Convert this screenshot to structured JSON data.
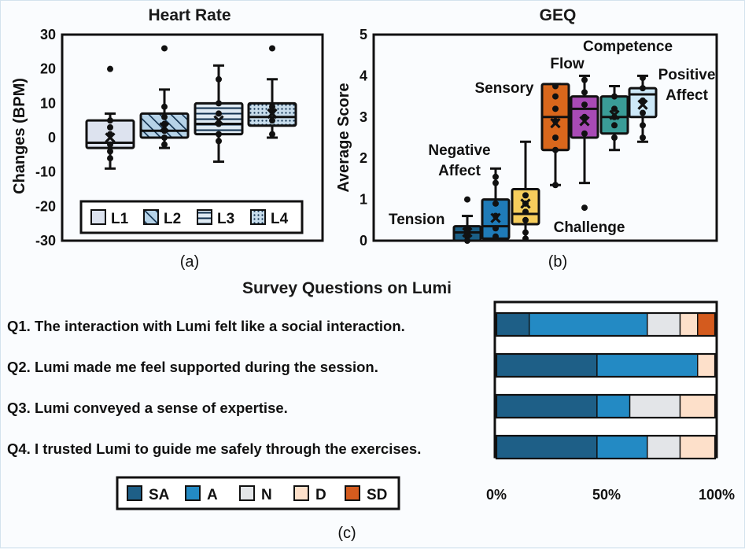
{
  "colors": {
    "L1": "#dde3ef",
    "L2": "#b6d3e8",
    "L3": "#dfeaf3",
    "L4": "#c7dceb",
    "Tension": "#1b5f86",
    "NegativeAffect": "#1f7bb8",
    "Sensory": "#f6cd5c",
    "Flow": "#d9671c",
    "Competence": "#a84ab5",
    "Challenge": "#3a9c97",
    "PositiveAffect": "#cde8f7",
    "SA": "#1e5f87",
    "A": "#238ac4",
    "N": "#e3e5e8",
    "D": "#fde0ca",
    "SD": "#d45b1e"
  },
  "chart_data": [
    {
      "type": "box",
      "panel": "(a)",
      "title": "Heart Rate",
      "ylabel": "Changes (BPM)",
      "ylim": [
        -30,
        30
      ],
      "yticks": [
        "30",
        "20",
        "10",
        "0",
        "-10",
        "-20",
        "-30"
      ],
      "legend_position": "bottom",
      "legend": [
        "L1",
        "L2",
        "L3",
        "L4"
      ],
      "series": [
        {
          "name": "L1",
          "pattern": "solid",
          "whisker_low": -9,
          "q1": -3,
          "median": -1.5,
          "q3": 5,
          "whisker_high": 7,
          "mean": 0,
          "points": [
            20,
            5,
            3,
            1,
            -2,
            -4,
            -6
          ]
        },
        {
          "name": "L2",
          "pattern": "diagonal",
          "whisker_low": -3,
          "q1": 0,
          "median": 2,
          "q3": 7,
          "whisker_high": 14,
          "mean": 3,
          "points": [
            26,
            9,
            6,
            4,
            2,
            0,
            -2
          ]
        },
        {
          "name": "L3",
          "pattern": "horizontal",
          "whisker_low": -7,
          "q1": 1,
          "median": 4,
          "q3": 10,
          "whisker_high": 21,
          "mean": 5,
          "points": [
            17,
            10,
            7,
            4,
            1,
            -1
          ]
        },
        {
          "name": "L4",
          "pattern": "dotted",
          "whisker_low": 0,
          "q1": 3.5,
          "median": 6,
          "q3": 10,
          "whisker_high": 17,
          "mean": 7,
          "points": [
            26,
            9,
            8,
            5,
            1
          ]
        }
      ]
    },
    {
      "type": "box",
      "panel": "(b)",
      "title": "GEQ",
      "ylabel": "Average Score",
      "ylim": [
        0,
        5
      ],
      "yticks": [
        "5",
        "4",
        "3",
        "2",
        "1",
        "0"
      ],
      "series": [
        {
          "name": "Tension",
          "whisker_low": 0,
          "q1": 0,
          "median": 0.2,
          "q3": 0.35,
          "whisker_high": 0.6,
          "mean": 0.2,
          "points": [
            1.0,
            0.3,
            0.1,
            0.0
          ]
        },
        {
          "name": "Negative Affect",
          "whisker_low": 0,
          "q1": 0.05,
          "median": 0.35,
          "q3": 1.0,
          "whisker_high": 1.75,
          "mean": 0.55,
          "points": [
            1.55,
            1.4,
            0.9,
            0.6,
            0.3,
            0.1
          ]
        },
        {
          "name": "Sensory",
          "whisker_low": 0,
          "q1": 0.4,
          "median": 0.65,
          "q3": 1.25,
          "whisker_high": 2.4,
          "mean": 0.9,
          "points": [
            1.1,
            0.9,
            0.7,
            0.5,
            0.2,
            0.05
          ]
        },
        {
          "name": "Flow",
          "whisker_low": 1.35,
          "q1": 2.2,
          "median": 3.0,
          "q3": 3.8,
          "whisker_high": 3.8,
          "mean": 2.85,
          "points": [
            3.75,
            3.5,
            3.2,
            2.9,
            2.5,
            2.2,
            1.35
          ]
        },
        {
          "name": "Competence",
          "whisker_low": 1.4,
          "q1": 2.5,
          "median": 3.2,
          "q3": 3.5,
          "whisker_high": 4.0,
          "mean": 2.9,
          "points": [
            3.9,
            3.6,
            3.3,
            3.0,
            2.6,
            0.8
          ]
        },
        {
          "name": "Challenge",
          "whisker_low": 2.2,
          "q1": 2.6,
          "median": 3.0,
          "q3": 3.5,
          "whisker_high": 3.75,
          "mean": 3.05,
          "points": [
            3.5,
            3.2,
            3.0,
            2.8,
            2.5
          ]
        },
        {
          "name": "Positive Affect",
          "whisker_low": 2.4,
          "q1": 3.0,
          "median": 3.55,
          "q3": 3.7,
          "whisker_high": 4.0,
          "mean": 3.3,
          "points": [
            3.95,
            3.7,
            3.4,
            3.1,
            2.8,
            2.5
          ]
        }
      ],
      "annotations": [
        "Tension",
        "Negative",
        "Affect",
        "Sensory",
        "Flow",
        "Competence",
        "Positive",
        "Affect",
        "Challenge"
      ]
    },
    {
      "type": "bar",
      "stacked": "horizontal-100%",
      "panel": "(c)",
      "title": "Survey Questions on Lumi",
      "categories": [
        "Q1. The interaction with Lumi felt like a social interaction.",
        "Q2. Lumi made me feel supported during the session.",
        "Q3. Lumi conveyed a sense of expertise.",
        "Q4. I trusted Lumi to guide me safely through the exercises."
      ],
      "xticks": [
        "0%",
        "50%",
        "100%"
      ],
      "legend_position": "bottom-left",
      "legend": [
        "SA",
        "A",
        "N",
        "D",
        "SD"
      ],
      "series": [
        {
          "name": "SA",
          "values": [
            15,
            46,
            46,
            46
          ]
        },
        {
          "name": "A",
          "values": [
            54,
            46,
            15,
            23
          ]
        },
        {
          "name": "N",
          "values": [
            15,
            0,
            23,
            15
          ]
        },
        {
          "name": "D",
          "values": [
            8,
            8,
            16,
            16
          ]
        },
        {
          "name": "SD",
          "values": [
            8,
            0,
            0,
            0
          ]
        }
      ]
    }
  ]
}
